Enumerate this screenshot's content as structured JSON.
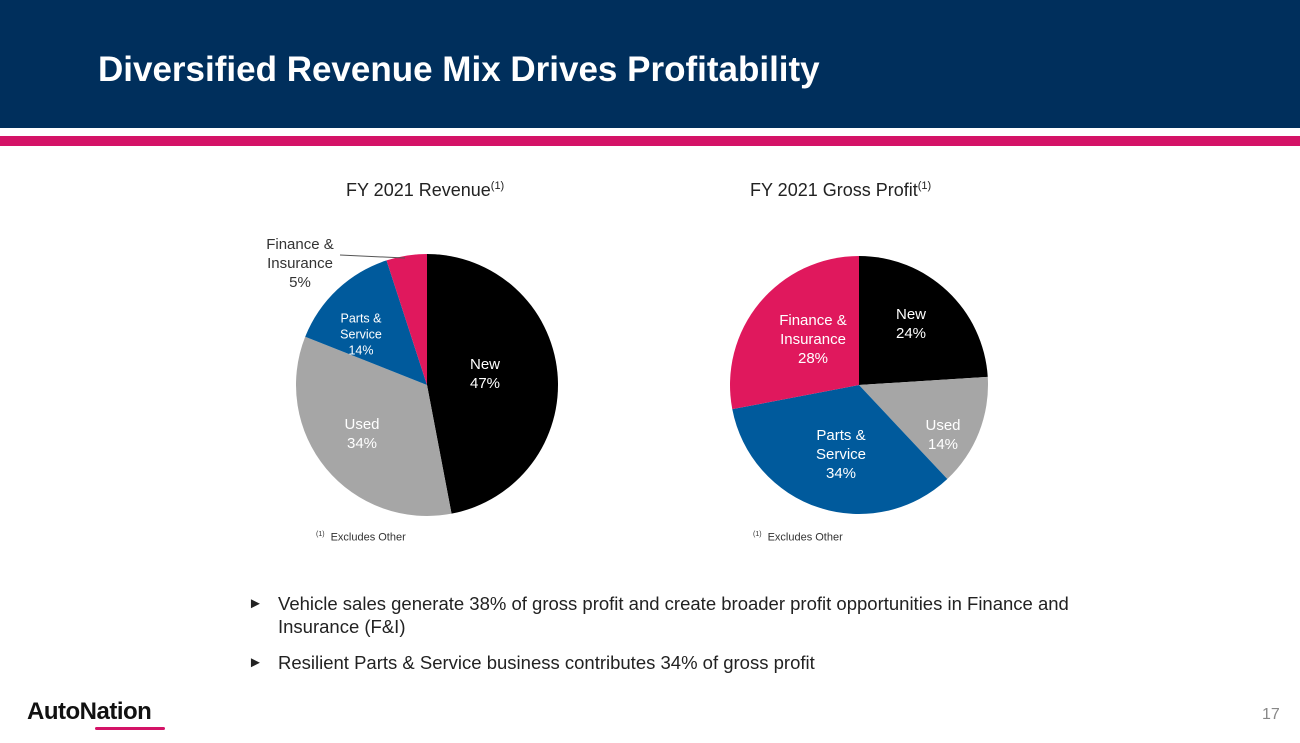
{
  "slide": {
    "title": "Diversified Revenue Mix Drives Profitability",
    "page_number": "17",
    "logo_text": "AutoNation"
  },
  "colors": {
    "header_bg": "#002f5c",
    "accent": "#d41367",
    "new": "#000000",
    "used": "#a6a6a6",
    "parts_service": "#005a9c",
    "finance_insurance": "#e0185d"
  },
  "chart_data": [
    {
      "type": "pie",
      "title": "FY 2021 Revenue",
      "title_superscript": "(1)",
      "footnote_marker": "(1)",
      "footnote": "Excludes Other",
      "slices": [
        {
          "label_lines": [
            "New"
          ],
          "value_label": "47%",
          "value": 47,
          "color": "#000000"
        },
        {
          "label_lines": [
            "Used"
          ],
          "value_label": "34%",
          "value": 34,
          "color": "#a6a6a6"
        },
        {
          "label_lines": [
            "Parts &",
            "Service"
          ],
          "value_label": "14%",
          "value": 14,
          "color": "#005a9c"
        },
        {
          "label_lines": [
            "Finance &",
            "Insurance"
          ],
          "value_label": "5%",
          "value": 5,
          "color": "#e0185d"
        }
      ]
    },
    {
      "type": "pie",
      "title": "FY 2021 Gross Profit",
      "title_superscript": "(1)",
      "footnote_marker": "(1)",
      "footnote": "Excludes Other",
      "slices": [
        {
          "label_lines": [
            "New"
          ],
          "value_label": "24%",
          "value": 24,
          "color": "#000000"
        },
        {
          "label_lines": [
            "Used"
          ],
          "value_label": "14%",
          "value": 14,
          "color": "#a6a6a6"
        },
        {
          "label_lines": [
            "Parts &",
            "Service"
          ],
          "value_label": "34%",
          "value": 34,
          "color": "#005a9c"
        },
        {
          "label_lines": [
            "Finance &",
            "Insurance"
          ],
          "value_label": "28%",
          "value": 28,
          "color": "#e0185d"
        }
      ]
    }
  ],
  "bullets": [
    "Vehicle sales generate 38% of gross profit and create broader profit opportunities in Finance and Insurance (F&I)",
    "Resilient Parts & Service business contributes 34% of gross profit"
  ],
  "bullet_marker": "►"
}
